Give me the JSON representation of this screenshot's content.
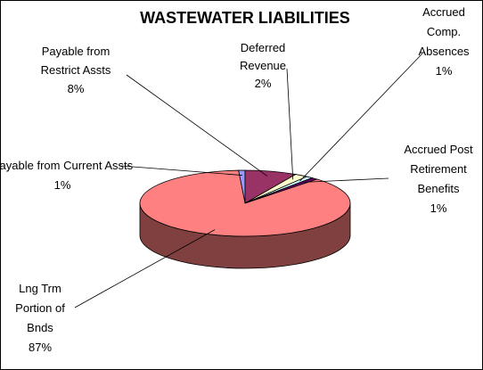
{
  "chart_data": {
    "type": "pie",
    "title": "WASTEWATER LIABILITIES",
    "categories": [
      "Payable from Current Assts",
      "Payable from Restrict Assts",
      "Deferred Revenue",
      "Accrued Comp. Absences",
      "Accrued Post Retirement Benefits",
      "Lng Trm Portion of Bnds"
    ],
    "values": [
      1,
      8,
      2,
      1,
      1,
      87
    ],
    "value_labels": [
      "1%",
      "8%",
      "2%",
      "1%",
      "1%",
      "87%"
    ],
    "colors": [
      "#9999ff",
      "#993366",
      "#ffffcc",
      "#ccffff",
      "#660066",
      "#ff8080"
    ]
  }
}
